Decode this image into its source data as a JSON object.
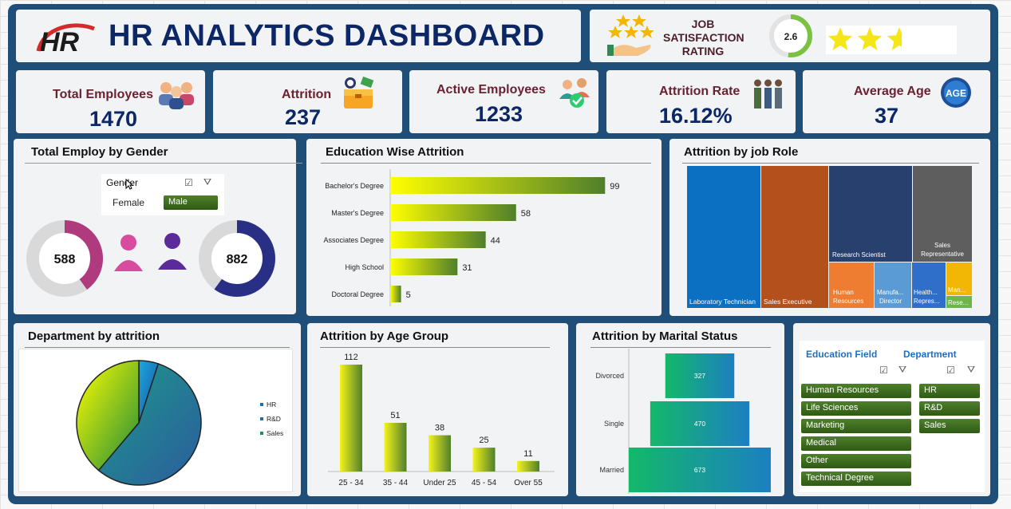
{
  "header": {
    "logo_text": "HR",
    "title": "HR ANALYTICS DASHBOARD"
  },
  "job_satisfaction": {
    "label_line1": "JOB",
    "label_line2": "SATISFACTION",
    "label_line3": "RATING",
    "value": "2.6",
    "gauge_fraction": 0.52,
    "stars": 2.6,
    "stars_max": 5
  },
  "kpis": [
    {
      "label": "Total Employees",
      "value": "1470",
      "icon": "employees-icon"
    },
    {
      "label": "Attrition",
      "value": "237",
      "icon": "briefcase-icon"
    },
    {
      "label": "Active Employees",
      "value": "1233",
      "icon": "active-people-icon"
    },
    {
      "label": "Attrition Rate",
      "value": "16.12%",
      "icon": "people-rate-icon"
    },
    {
      "label": "Average Age",
      "value": "37",
      "icon": "age-badge-icon"
    }
  ],
  "gender": {
    "title": "Total Employ by Gender",
    "slicer_title": "Gender",
    "options": [
      "Female",
      "Male"
    ],
    "selected": "Male",
    "female_count": "588",
    "male_count": "882",
    "female_color": "#b03a7e",
    "male_color": "#2a2f86"
  },
  "education_attrition": {
    "title": "Education Wise Attrition"
  },
  "job_role": {
    "title": "Attrition by job Role",
    "cells": [
      "Laboratory Technician",
      "Sales Executive",
      "Research Scientist",
      "Sales Representative",
      "Human Resources",
      "Manufa... Director",
      "Health... Repres...",
      "Man...",
      "Rese..."
    ]
  },
  "department": {
    "title": "Department by attrition",
    "legend": [
      "HR",
      "R&D",
      "Sales"
    ]
  },
  "age_group": {
    "title": "Attrition by Age Group"
  },
  "marital": {
    "title": "Attrition by Marital Status"
  },
  "slicers": {
    "education_field": {
      "title": "Education Field",
      "items": [
        "Human Resources",
        "Life Sciences",
        "Marketing",
        "Medical",
        "Other",
        "Technical Degree"
      ]
    },
    "department": {
      "title": "Department",
      "items": [
        "HR",
        "R&D",
        "Sales"
      ]
    }
  },
  "chart_data": [
    {
      "type": "bar",
      "orientation": "horizontal",
      "title": "Education Wise Attrition",
      "categories": [
        "Bachelor's Degree",
        "Master's Degree",
        "Associates Degree",
        "High School",
        "Doctoral Degree"
      ],
      "values": [
        99,
        58,
        44,
        31,
        5
      ]
    },
    {
      "type": "pie",
      "title": "Department by attrition",
      "categories": [
        "HR",
        "R&D",
        "Sales"
      ],
      "values": [
        12,
        133,
        92
      ]
    },
    {
      "type": "bar",
      "title": "Attrition by Age Group",
      "categories": [
        "25 - 34",
        "35 - 44",
        "Under 25",
        "45 - 54",
        "Over 55"
      ],
      "values": [
        112,
        51,
        38,
        25,
        11
      ]
    },
    {
      "type": "bar",
      "orientation": "horizontal",
      "title": "Attrition by Marital Status",
      "categories": [
        "Divorced",
        "Single",
        "Married"
      ],
      "values": [
        327,
        470,
        673
      ]
    },
    {
      "type": "treemap",
      "title": "Attrition by job Role",
      "categories": [
        "Laboratory Technician",
        "Sales Executive",
        "Research Scientist",
        "Sales Representative",
        "Human Resources",
        "Manufacturing Director",
        "Healthcare Representative",
        "Manager",
        "Research Director"
      ],
      "values": [
        62,
        57,
        47,
        33,
        12,
        10,
        9,
        5,
        2
      ]
    }
  ]
}
